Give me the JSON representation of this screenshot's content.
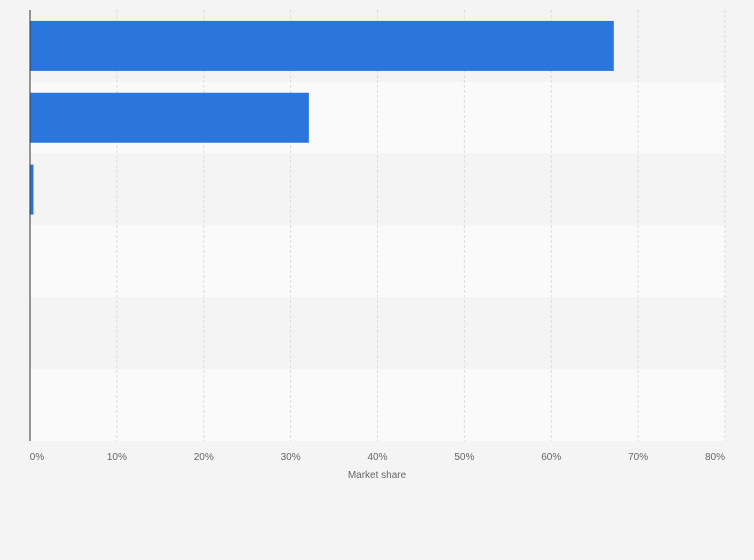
{
  "chart_data": {
    "type": "bar",
    "orientation": "horizontal",
    "categories": [
      "",
      "",
      "",
      "",
      "",
      ""
    ],
    "series": [
      {
        "values": [
          67.2,
          32.1,
          0.4,
          0,
          0,
          0
        ]
      }
    ],
    "title": "",
    "xlabel": "Market share",
    "ylabel": "",
    "xlim": [
      0,
      80
    ],
    "x_ticks": [
      0,
      10,
      20,
      30,
      40,
      50,
      60,
      70,
      80
    ],
    "x_tick_labels": [
      "0%",
      "10%",
      "20%",
      "30%",
      "40%",
      "50%",
      "60%",
      "70%",
      "80%"
    ],
    "grid": "vertical dashed",
    "legend": "none",
    "colors": {
      "bar": "#2a76dd",
      "band_dark": "#f4f4f4",
      "band_light": "#fafafa",
      "grid": "#dddddd",
      "axis": "#333333",
      "text": "#666666"
    }
  }
}
